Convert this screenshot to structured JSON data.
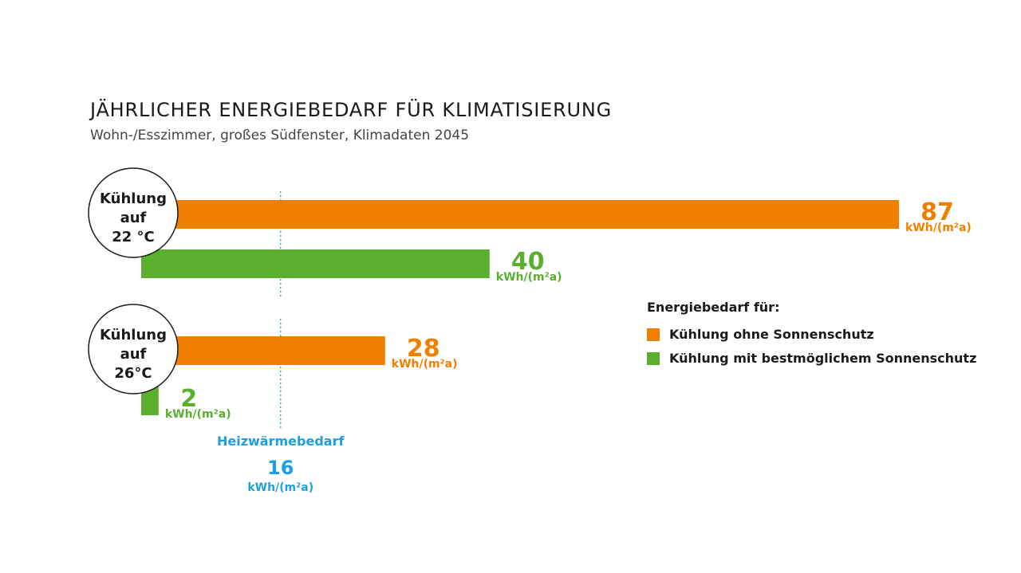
{
  "title": "JÄHRLICHER ENERGIEBEDARF FÜR KLIMATISIERUNG",
  "subtitle": "Wohn-/Esszimmer, großes Südfenster, Klimadaten 2045",
  "colors": {
    "orange": "#f07f00",
    "green": "#5aaf2e",
    "blue": "#1e9fdc",
    "dark": "#1a1a1a"
  },
  "legend": {
    "heading": "Energiebedarf für:",
    "items": [
      {
        "label": "Kühlung ohne Sonnenschutz",
        "color": "#f07f00"
      },
      {
        "label": "Kühlung mit bestmöglichem Sonnenschutz",
        "color": "#5aaf2e"
      }
    ]
  },
  "chart_data": {
    "type": "bar",
    "unit": "kWh/(m²a)",
    "groups": [
      {
        "label_lines": [
          "Kühlung",
          "auf",
          "22 °C"
        ],
        "bars": [
          {
            "series": "Kühlung ohne Sonnenschutz",
            "value": 87,
            "color": "#f07f00"
          },
          {
            "series": "Kühlung mit bestmöglichem Sonnenschutz",
            "value": 40,
            "color": "#5aaf2e"
          }
        ]
      },
      {
        "label_lines": [
          "Kühlung",
          "auf",
          "26°C"
        ],
        "bars": [
          {
            "series": "Kühlung ohne Sonnenschutz",
            "value": 28,
            "color": "#f07f00"
          },
          {
            "series": "Kühlung mit bestmöglichem Sonnenschutz",
            "value": 2,
            "color": "#5aaf2e"
          }
        ]
      }
    ],
    "reference": {
      "label": "Heizwärmebedarf",
      "value": 16,
      "color": "#1e9fdc"
    }
  }
}
